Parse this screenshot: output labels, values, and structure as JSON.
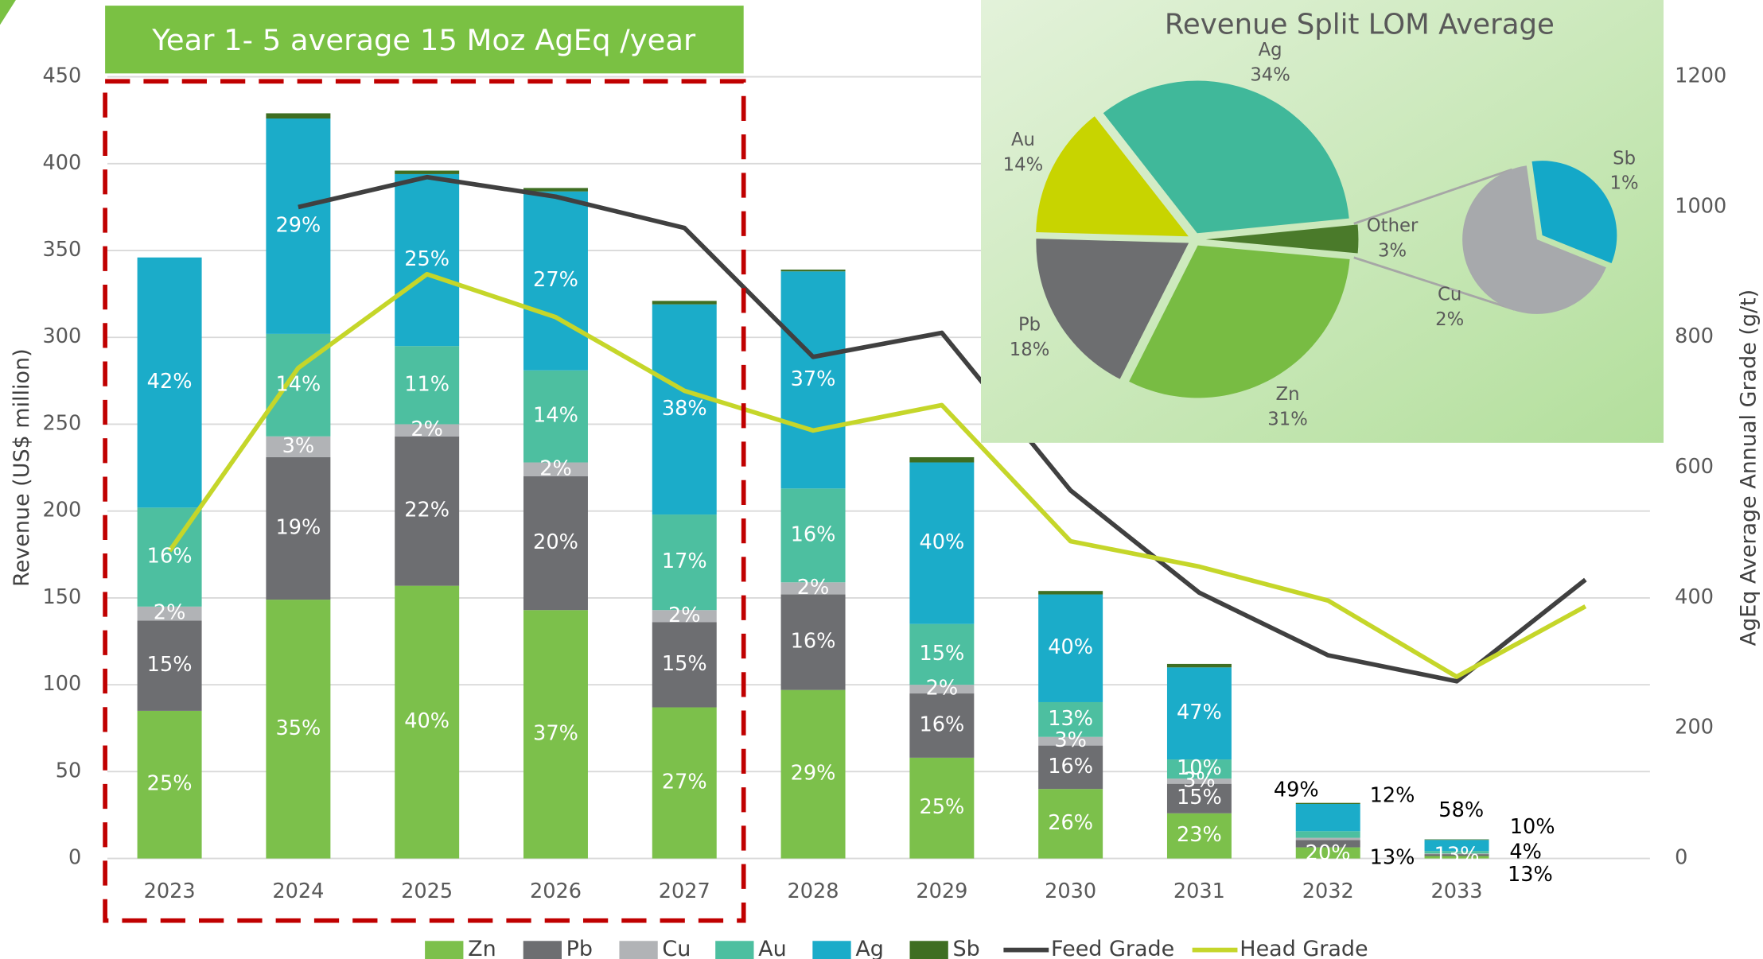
{
  "chart_data": [
    {
      "type": "stacked_bar_line",
      "annotations": [
        "Year 1- 5 average 15 Moz AgEq /year"
      ],
      "y_label": "Revenue (US$ million)",
      "y2_label": "AgEq Average Annual Grade (g/t)",
      "categories": [
        "2023",
        "2024",
        "2025",
        "2026",
        "2027",
        "2028",
        "2029",
        "2030",
        "2031",
        "2032",
        "2033",
        null
      ],
      "ylim": [
        0,
        450
      ],
      "yticks": [
        0,
        50,
        100,
        150,
        200,
        250,
        300,
        350,
        400,
        450
      ],
      "y2lim": [
        0,
        1200
      ],
      "y2ticks": [
        0,
        200,
        400,
        600,
        800,
        1000,
        1200
      ],
      "grid": true,
      "series": [
        {
          "name": "Zn",
          "color": "#7cc04b",
          "values": [
            85,
            149,
            157,
            143,
            87,
            97,
            58,
            40,
            26,
            6.4,
            1.4,
            null
          ],
          "share_labels": [
            "25%",
            "35%",
            "40%",
            "37%",
            "27%",
            "29%",
            "25%",
            "26%",
            "23%",
            "20%",
            "13%",
            null
          ]
        },
        {
          "name": "Pb",
          "color": "#6d6e71",
          "values": [
            52,
            82,
            86,
            77,
            49,
            55,
            37,
            25,
            17,
            4.2,
            1.1,
            null
          ],
          "share_labels": [
            "15%",
            "19%",
            "22%",
            "20%",
            "15%",
            "16%",
            "16%",
            "16%",
            "15%",
            "13%",
            "10%",
            null
          ]
        },
        {
          "name": "Cu",
          "color": "#b1b3b6",
          "values": [
            8,
            12,
            7,
            8,
            7,
            7,
            5,
            5,
            3,
            1.3,
            0.4,
            null
          ],
          "share_labels": [
            "2%",
            "3%",
            "2%",
            "2%",
            "2%",
            "2%",
            "2%",
            "3%",
            "3%",
            null,
            "4%",
            null
          ]
        },
        {
          "name": "Au",
          "color": "#4dbfa0",
          "values": [
            57,
            59,
            45,
            53,
            55,
            54,
            35,
            20,
            11,
            3.8,
            1.4,
            null
          ],
          "share_labels": [
            "16%",
            "14%",
            "11%",
            "14%",
            "17%",
            "16%",
            "15%",
            "13%",
            "10%",
            "12%",
            "13%",
            null
          ]
        },
        {
          "name": "Ag",
          "color": "#1bacc9",
          "values": [
            144,
            124,
            99,
            103,
            121,
            125,
            93,
            62,
            53,
            15.7,
            6.4,
            null
          ],
          "share_labels": [
            "42%",
            "29%",
            "25%",
            "27%",
            "38%",
            "37%",
            "40%",
            "40%",
            "47%",
            "49%",
            "58%",
            null
          ]
        },
        {
          "name": "Sb",
          "color": "#3f6e22",
          "values": [
            0,
            3,
            2,
            2,
            2,
            1,
            3,
            2,
            2,
            0.6,
            0.3,
            null
          ]
        },
        {
          "name": "Feed Grade",
          "type": "line",
          "axis": "y2",
          "color": "#404040",
          "values": [
            null,
            1000,
            1046,
            1016,
            968,
            770,
            807,
            565,
            408,
            312,
            272,
            428
          ]
        },
        {
          "name": "Head Grade",
          "type": "line",
          "axis": "y2",
          "color": "#c5d62a",
          "values": [
            472,
            753,
            897,
            831,
            718,
            657,
            696,
            487,
            448,
            396,
            279,
            387
          ]
        }
      ]
    },
    {
      "type": "pie",
      "title": "Revenue Split LOM Average",
      "categories": [
        "Ag",
        "Other",
        "Zn",
        "Pb",
        "Au"
      ],
      "values": [
        34,
        3,
        31,
        18,
        14
      ],
      "value_labels": [
        "34%",
        "3%",
        "31%",
        "18%",
        "14%"
      ],
      "colors": [
        "#40b89a",
        "#4a7a2a",
        "#78bc43",
        "#6d6e70",
        "#c8d400"
      ],
      "breakdown": {
        "categories": [
          "Sb",
          "Cu"
        ],
        "values": [
          1,
          2
        ],
        "value_labels": [
          "1%",
          "2%"
        ],
        "colors": [
          "#14a8c8",
          "#a7a9ac"
        ]
      }
    }
  ]
}
